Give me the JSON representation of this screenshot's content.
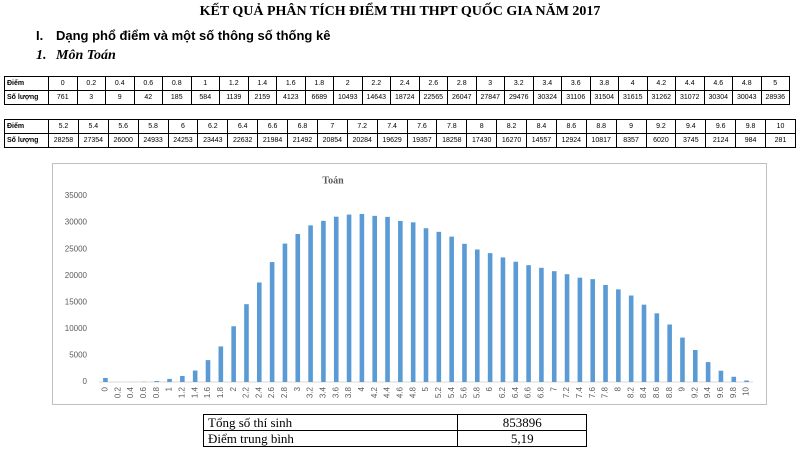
{
  "title": "KẾT QUẢ PHÂN TÍCH ĐIỂM THI THPT QUỐC GIA NĂM 2017",
  "section": {
    "number": "I.",
    "heading": "Dạng phổ điểm và một số thông số thống kê"
  },
  "subsection": {
    "number": "1.",
    "heading": "Môn Toán"
  },
  "score_tables": [
    {
      "row_labels": [
        "Điểm",
        "Số lượng"
      ],
      "scores": [
        "0",
        "0.2",
        "0.4",
        "0.6",
        "0.8",
        "1",
        "1.2",
        "1.4",
        "1.6",
        "1.8",
        "2",
        "2.2",
        "2.4",
        "2.6",
        "2.8",
        "3",
        "3.2",
        "3.4",
        "3.6",
        "3.8",
        "4",
        "4.2",
        "4.4",
        "4.6",
        "4.8",
        "5"
      ],
      "counts": [
        761,
        3,
        9,
        42,
        185,
        584,
        1139,
        2159,
        4123,
        6689,
        10493,
        14643,
        18724,
        22565,
        26047,
        27847,
        29476,
        30324,
        31106,
        31504,
        31615,
        31262,
        31072,
        30304,
        30043,
        28936
      ]
    },
    {
      "row_labels": [
        "Điểm",
        "Số lượng"
      ],
      "scores": [
        "5.2",
        "5.4",
        "5.6",
        "5.8",
        "6",
        "6.2",
        "6.4",
        "6.6",
        "6.8",
        "7",
        "7.2",
        "7.4",
        "7.6",
        "7.8",
        "8",
        "8.2",
        "8.4",
        "8.6",
        "8.8",
        "9",
        "9.2",
        "9.4",
        "9.6",
        "9.8",
        "10"
      ],
      "counts": [
        28258,
        27354,
        26000,
        24933,
        24253,
        23443,
        22632,
        21984,
        21492,
        20854,
        20284,
        19629,
        19357,
        18258,
        17430,
        16270,
        14557,
        12924,
        10817,
        8357,
        6020,
        3745,
        2124,
        984,
        281
      ]
    }
  ],
  "chart_data": {
    "type": "bar",
    "title": "Toán",
    "color": "#5b9bd5",
    "grid": false,
    "categories": [
      "0",
      "0.2",
      "0.4",
      "0.6",
      "0.8",
      "1",
      "1.2",
      "1.4",
      "1.6",
      "1.8",
      "2",
      "2.2",
      "2.4",
      "2.6",
      "2.8",
      "3",
      "3.2",
      "3.4",
      "3.6",
      "3.8",
      "4",
      "4.2",
      "4.4",
      "4.6",
      "4.8",
      "5",
      "5.2",
      "5.4",
      "5.6",
      "5.8",
      "6",
      "6.2",
      "6.4",
      "6.6",
      "6.8",
      "7",
      "7.2",
      "7.4",
      "7.6",
      "7.8",
      "8",
      "8.2",
      "8.4",
      "8.6",
      "8.8",
      "9",
      "9.2",
      "9.4",
      "9.6",
      "9.8",
      "10"
    ],
    "values": [
      761,
      3,
      9,
      42,
      185,
      584,
      1139,
      2159,
      4123,
      6689,
      10493,
      14643,
      18724,
      22565,
      26047,
      27847,
      29476,
      30324,
      31106,
      31504,
      31615,
      31262,
      31072,
      30304,
      30043,
      28936,
      28258,
      27354,
      26000,
      24933,
      24253,
      23443,
      22632,
      21984,
      21492,
      20854,
      20284,
      19629,
      19357,
      18258,
      17430,
      16270,
      14557,
      12924,
      10817,
      8357,
      6020,
      3745,
      2124,
      984,
      281
    ],
    "ylim": [
      0,
      35000
    ],
    "yticks": [
      0,
      5000,
      10000,
      15000,
      20000,
      25000,
      30000,
      35000
    ]
  },
  "summary_table": {
    "rows": [
      [
        "Tổng số thí sinh",
        "853896"
      ],
      [
        "Điểm trung bình",
        "5,19"
      ]
    ]
  }
}
